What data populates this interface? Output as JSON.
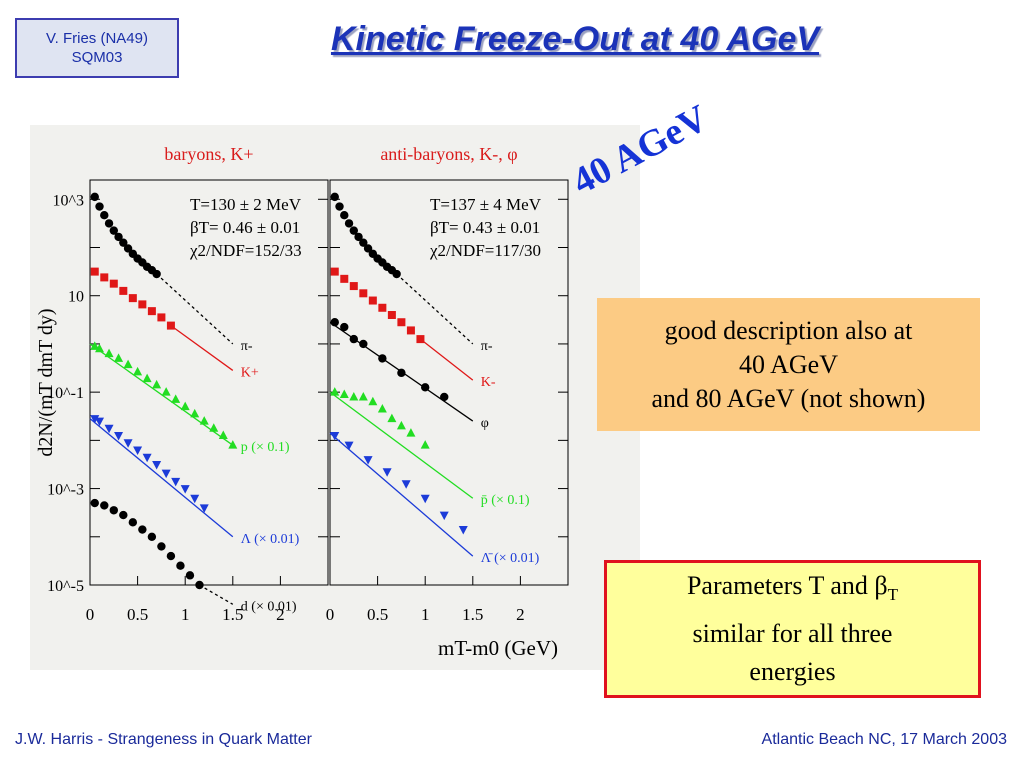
{
  "header": {
    "author_line1": "V. Fries (NA49)",
    "author_line2": "SQM03",
    "title": "Kinetic Freeze-Out at 40 AGeV"
  },
  "energy_label": "40 AGeV",
  "boxes": {
    "description": [
      "good description also at",
      "40 AGeV",
      "and 80 AGeV (not shown)"
    ],
    "parameters": {
      "line1_prefix": "Parameters T and ",
      "beta": "β",
      "beta_sub": "T",
      "line2": "similar for all three",
      "line3": "energies"
    }
  },
  "footer": {
    "left": "J.W. Harris - Strangeness in Quark Matter",
    "right": "Atlantic Beach NC, 17 March 2003"
  },
  "colors": {
    "black": "#000000",
    "red": "#e01818",
    "green": "#22dd22",
    "blue": "#1c3bd8",
    "title": "#1b33b8"
  },
  "chart_data": [
    {
      "type": "scatter",
      "panel_title": "baryons, K+",
      "fit_parameters": [
        "T=130 ± 2 MeV",
        "βT= 0.46 ± 0.01",
        "χ2/NDF=152/33"
      ],
      "xlabel": "mT-m0 (GeV)",
      "ylabel": "d2N/(mT dmT dy)",
      "xlim": [
        0,
        2.5
      ],
      "ylim": [
        -5,
        3.4
      ],
      "yscale": "log",
      "x_ticks": [
        "0",
        "0.5",
        "1",
        "1.5",
        "2"
      ],
      "y_ticks": [
        "10^3",
        "10",
        "10^-1",
        "10^-3",
        "10^-5"
      ],
      "series": [
        {
          "name": "π-",
          "color": "black",
          "marker": "circle",
          "line": "dashed",
          "x": [
            0.05,
            0.1,
            0.15,
            0.2,
            0.25,
            0.3,
            0.35,
            0.4,
            0.45,
            0.5,
            0.55,
            0.6,
            0.65,
            0.7
          ],
          "y": [
            3.05,
            2.85,
            2.67,
            2.5,
            2.35,
            2.22,
            2.1,
            1.98,
            1.87,
            1.77,
            1.69,
            1.6,
            1.53,
            1.45
          ],
          "fit": [
            [
              0.7,
              1.45
            ],
            [
              1.5,
              0.0
            ]
          ]
        },
        {
          "name": "K+",
          "color": "red",
          "marker": "square",
          "line": "solid",
          "x": [
            0.05,
            0.15,
            0.25,
            0.35,
            0.45,
            0.55,
            0.65,
            0.75,
            0.85
          ],
          "y": [
            1.5,
            1.38,
            1.25,
            1.1,
            0.95,
            0.82,
            0.68,
            0.55,
            0.38
          ],
          "fit": [
            [
              0.85,
              0.38
            ],
            [
              1.5,
              -0.55
            ]
          ]
        },
        {
          "name": "p (× 0.1)",
          "color": "green",
          "marker": "triangle-up",
          "line": "solid",
          "x": [
            0.05,
            0.1,
            0.2,
            0.3,
            0.4,
            0.5,
            0.6,
            0.7,
            0.8,
            0.9,
            1.0,
            1.1,
            1.2,
            1.3,
            1.4,
            1.5
          ],
          "y": [
            -0.05,
            -0.1,
            -0.2,
            -0.3,
            -0.43,
            -0.58,
            -0.72,
            -0.85,
            -1.0,
            -1.15,
            -1.3,
            -1.45,
            -1.6,
            -1.75,
            -1.9,
            -2.1
          ],
          "fit": [
            [
              0.0,
              0.0
            ],
            [
              1.5,
              -2.1
            ]
          ]
        },
        {
          "name": "Λ (× 0.01)",
          "color": "blue",
          "marker": "triangle-down",
          "line": "solid",
          "x": [
            0.05,
            0.1,
            0.2,
            0.3,
            0.4,
            0.5,
            0.6,
            0.7,
            0.8,
            0.9,
            1.0,
            1.1,
            1.2
          ],
          "y": [
            -1.55,
            -1.6,
            -1.75,
            -1.9,
            -2.05,
            -2.2,
            -2.35,
            -2.5,
            -2.68,
            -2.85,
            -3.0,
            -3.2,
            -3.4
          ],
          "fit": [
            [
              0.0,
              -1.55
            ],
            [
              1.5,
              -4.0
            ]
          ]
        },
        {
          "name": "d (× 0.01)",
          "color": "black",
          "marker": "circle",
          "line": "dashed",
          "x": [
            0.05,
            0.15,
            0.25,
            0.35,
            0.45,
            0.55,
            0.65,
            0.75,
            0.85,
            0.95,
            1.05,
            1.15
          ],
          "y": [
            -3.3,
            -3.35,
            -3.45,
            -3.55,
            -3.7,
            -3.85,
            -4.0,
            -4.2,
            -4.4,
            -4.6,
            -4.8,
            -5.0
          ],
          "fit": [
            [
              1.15,
              -5.0
            ],
            [
              1.5,
              -5.4
            ]
          ]
        }
      ]
    },
    {
      "type": "scatter",
      "panel_title": "anti-baryons, K-, φ",
      "fit_parameters": [
        "T=137 ± 4 MeV",
        "βT= 0.43 ± 0.01",
        "χ2/NDF=117/30"
      ],
      "xlabel": "mT-m0 (GeV)",
      "xlim": [
        0,
        2.5
      ],
      "ylim": [
        -5,
        3.4
      ],
      "yscale": "log",
      "x_ticks": [
        "0",
        "0.5",
        "1",
        "1.5",
        "2"
      ],
      "series": [
        {
          "name": "π-",
          "color": "black",
          "marker": "circle",
          "line": "dashed",
          "x": [
            0.05,
            0.1,
            0.15,
            0.2,
            0.25,
            0.3,
            0.35,
            0.4,
            0.45,
            0.5,
            0.55,
            0.6,
            0.65,
            0.7
          ],
          "y": [
            3.05,
            2.85,
            2.67,
            2.5,
            2.35,
            2.22,
            2.1,
            1.98,
            1.87,
            1.77,
            1.69,
            1.6,
            1.53,
            1.45
          ],
          "fit": [
            [
              0.7,
              1.45
            ],
            [
              1.5,
              0.0
            ]
          ]
        },
        {
          "name": "K-",
          "color": "red",
          "marker": "square",
          "line": "solid",
          "x": [
            0.05,
            0.15,
            0.25,
            0.35,
            0.45,
            0.55,
            0.65,
            0.75,
            0.85,
            0.95
          ],
          "y": [
            1.5,
            1.35,
            1.2,
            1.05,
            0.9,
            0.75,
            0.6,
            0.45,
            0.28,
            0.1
          ],
          "fit": [
            [
              0.95,
              0.1
            ],
            [
              1.5,
              -0.75
            ]
          ]
        },
        {
          "name": "φ",
          "color": "black",
          "marker": "circle",
          "line": "solid",
          "x": [
            0.05,
            0.15,
            0.25,
            0.35,
            0.55,
            0.75,
            1.0,
            1.2
          ],
          "y": [
            0.45,
            0.35,
            0.1,
            0.0,
            -0.3,
            -0.6,
            -0.9,
            -1.1
          ],
          "fit": [
            [
              0.0,
              0.45
            ],
            [
              1.5,
              -1.6
            ]
          ]
        },
        {
          "name": "p̄ (× 0.1)",
          "color": "green",
          "marker": "triangle-up",
          "line": "solid",
          "x": [
            0.05,
            0.15,
            0.25,
            0.35,
            0.45,
            0.55,
            0.65,
            0.75,
            0.85,
            1.0
          ],
          "y": [
            -1.0,
            -1.05,
            -1.1,
            -1.1,
            -1.2,
            -1.35,
            -1.55,
            -1.7,
            -1.85,
            -2.1
          ],
          "fit": [
            [
              0.0,
              -1.0
            ],
            [
              1.5,
              -3.2
            ]
          ]
        },
        {
          "name": "Λ̄ (× 0.01)",
          "color": "blue",
          "marker": "triangle-down",
          "line": "solid",
          "x": [
            0.05,
            0.2,
            0.4,
            0.6,
            0.8,
            1.0,
            1.2,
            1.4
          ],
          "y": [
            -1.9,
            -2.1,
            -2.4,
            -2.65,
            -2.9,
            -3.2,
            -3.55,
            -3.85
          ],
          "fit": [
            [
              0.0,
              -1.85
            ],
            [
              1.5,
              -4.4
            ]
          ]
        }
      ]
    }
  ]
}
